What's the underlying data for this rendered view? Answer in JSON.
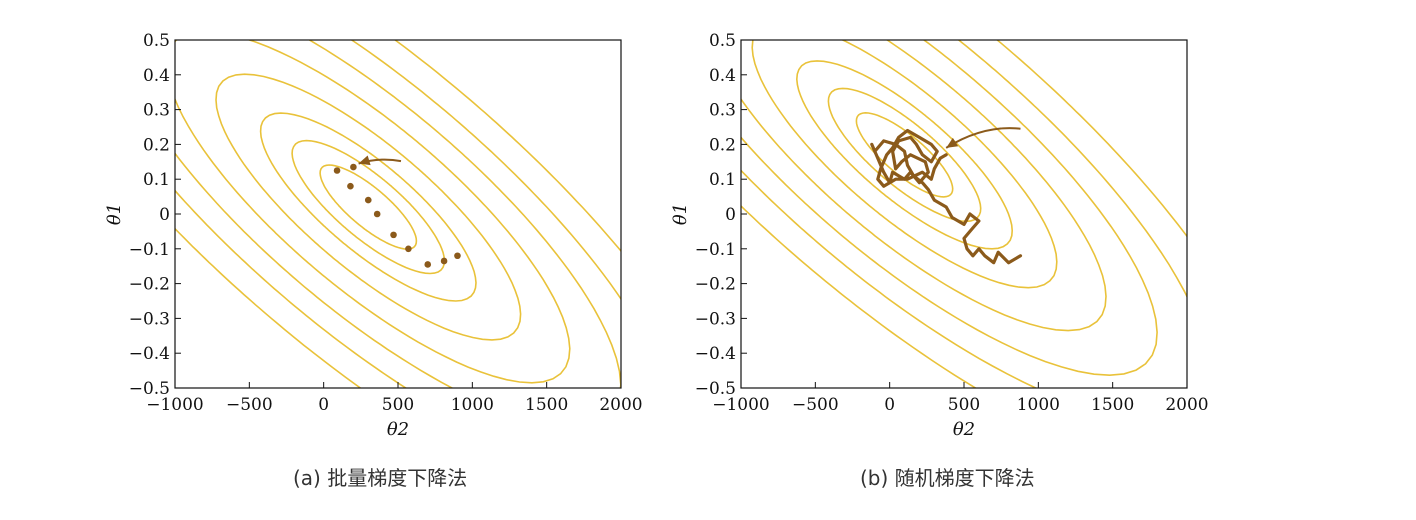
{
  "colors": {
    "contour": "#e9c23a",
    "path": "#8b5a1b",
    "axis": "#111111"
  },
  "panels": [
    {
      "caption": "(a) 批量梯度下降法",
      "chart_data": {
        "type": "contour",
        "xlabel": "θ2",
        "ylabel": "θ1",
        "xlim": [
          -1000,
          2000
        ],
        "ylim": [
          -0.5,
          0.5
        ],
        "xticks": [
          -1000,
          -500,
          0,
          500,
          1000,
          1500,
          2000
        ],
        "xtick_labels": [
          "−1000",
          "−500",
          "0",
          "500",
          "1000",
          "1500",
          "2000"
        ],
        "yticks": [
          0.5,
          0.4,
          0.3,
          0.2,
          0.1,
          0,
          -0.1,
          -0.2,
          -0.3,
          -0.4,
          -0.5
        ],
        "ytick_labels": [
          "0.5",
          "0.4",
          "0.3",
          "0.2",
          "0.1",
          "0",
          "−0.1",
          "−0.2",
          "−0.3",
          "−0.4",
          "−0.5"
        ],
        "contour_center": [
          300,
          0.02
        ],
        "contour_levels": [
          0.4,
          1,
          2,
          4,
          7,
          11,
          16,
          23
        ],
        "path_style": "points",
        "path": [
          [
            900,
            -0.12
          ],
          [
            810,
            -0.135
          ],
          [
            700,
            -0.145
          ],
          [
            570,
            -0.1
          ],
          [
            470,
            -0.06
          ],
          [
            360,
            0.0
          ],
          [
            300,
            0.04
          ],
          [
            180,
            0.08
          ],
          [
            200,
            0.135
          ],
          [
            90,
            0.125
          ]
        ],
        "arrow": {
          "from": [
            520,
            0.152
          ],
          "to": [
            235,
            0.145
          ]
        }
      }
    },
    {
      "caption": "(b) 随机梯度下降法",
      "chart_data": {
        "type": "contour",
        "xlabel": "θ2",
        "ylabel": "θ1",
        "xlim": [
          -1000,
          2000
        ],
        "ylim": [
          -0.5,
          0.5
        ],
        "xticks": [
          -1000,
          -500,
          0,
          500,
          1000,
          1500,
          2000
        ],
        "xtick_labels": [
          "−1000",
          "−500",
          "0",
          "500",
          "1000",
          "1500",
          "2000"
        ],
        "yticks": [
          0.5,
          0.4,
          0.3,
          0.2,
          0.1,
          0,
          -0.1,
          -0.2,
          -0.3,
          -0.4,
          -0.5
        ],
        "ytick_labels": [
          "0.5",
          "0.4",
          "0.3",
          "0.2",
          "0.1",
          "0",
          "−0.1",
          "−0.2",
          "−0.3",
          "−0.4",
          "−0.5"
        ],
        "contour_center": [
          100,
          0.17
        ],
        "contour_levels": [
          0.4,
          1,
          2,
          4,
          7,
          11,
          16,
          23
        ],
        "path_style": "line",
        "path": [
          [
            880,
            -0.12
          ],
          [
            800,
            -0.14
          ],
          [
            730,
            -0.11
          ],
          [
            700,
            -0.14
          ],
          [
            640,
            -0.12
          ],
          [
            600,
            -0.1
          ],
          [
            560,
            -0.12
          ],
          [
            520,
            -0.1
          ],
          [
            500,
            -0.07
          ],
          [
            560,
            -0.04
          ],
          [
            600,
            -0.02
          ],
          [
            540,
            0.0
          ],
          [
            500,
            -0.03
          ],
          [
            420,
            -0.01
          ],
          [
            380,
            0.02
          ],
          [
            300,
            0.04
          ],
          [
            260,
            0.07
          ],
          [
            220,
            0.09
          ],
          [
            160,
            0.11
          ],
          [
            120,
            0.14
          ],
          [
            100,
            0.18
          ],
          [
            40,
            0.2
          ],
          [
            -40,
            0.21
          ],
          [
            -100,
            0.18
          ],
          [
            -120,
            0.2
          ],
          [
            -80,
            0.16
          ],
          [
            -40,
            0.12
          ],
          [
            0,
            0.09
          ],
          [
            20,
            0.12
          ],
          [
            100,
            0.1
          ],
          [
            140,
            0.12
          ],
          [
            200,
            0.09
          ],
          [
            260,
            0.12
          ],
          [
            240,
            0.15
          ],
          [
            140,
            0.17
          ],
          [
            80,
            0.15
          ],
          [
            40,
            0.13
          ],
          [
            20,
            0.18
          ],
          [
            60,
            0.21
          ],
          [
            140,
            0.22
          ],
          [
            180,
            0.2
          ],
          [
            220,
            0.17
          ],
          [
            280,
            0.15
          ],
          [
            320,
            0.18
          ],
          [
            280,
            0.2
          ],
          [
            200,
            0.22
          ],
          [
            120,
            0.24
          ],
          [
            60,
            0.22
          ],
          [
            20,
            0.19
          ],
          [
            -20,
            0.17
          ],
          [
            -60,
            0.13
          ],
          [
            -80,
            0.1
          ],
          [
            -40,
            0.08
          ],
          [
            40,
            0.1
          ],
          [
            120,
            0.1
          ],
          [
            220,
            0.12
          ],
          [
            280,
            0.1
          ],
          [
            300,
            0.13
          ],
          [
            340,
            0.16
          ],
          [
            380,
            0.17
          ]
        ],
        "arrow": {
          "from": [
            880,
            0.245
          ],
          "to": [
            380,
            0.19
          ]
        }
      }
    }
  ]
}
